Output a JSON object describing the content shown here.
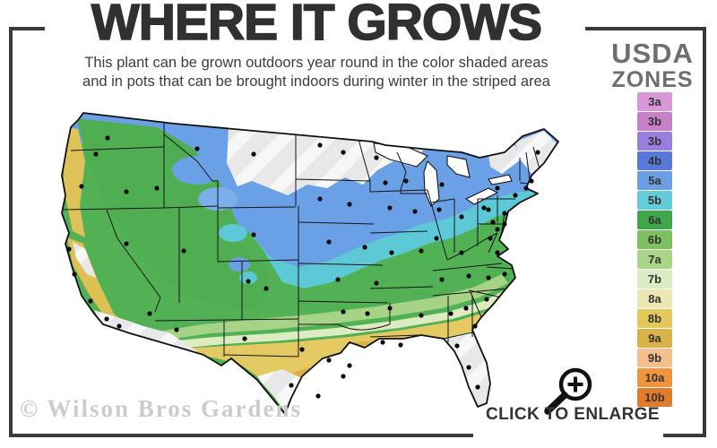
{
  "title": "WHERE IT GROWS",
  "subtitle": {
    "line1": "This plant can be grown outdoors year round in the color shaded areas",
    "line2": "and in pots that can be brought indoors during winter in the striped area"
  },
  "legend": {
    "heading_line1": "USDA",
    "heading_line2": "ZONES",
    "zones": [
      {
        "label": "3a",
        "color": "#d897d6"
      },
      {
        "label": "3b",
        "color": "#c77fc7"
      },
      {
        "label": "3b",
        "color": "#9b7de0"
      },
      {
        "label": "4b",
        "color": "#5a78d8"
      },
      {
        "label": "5a",
        "color": "#6b9fe4"
      },
      {
        "label": "5b",
        "color": "#63ccd8"
      },
      {
        "label": "6a",
        "color": "#3fa64c"
      },
      {
        "label": "6b",
        "color": "#7cc05f"
      },
      {
        "label": "7a",
        "color": "#a8d586"
      },
      {
        "label": "7b",
        "color": "#d9ecc3"
      },
      {
        "label": "8a",
        "color": "#ede6b4"
      },
      {
        "label": "8b",
        "color": "#e3c85c"
      },
      {
        "label": "9a",
        "color": "#d9b348"
      },
      {
        "label": "9b",
        "color": "#f3bf8d"
      },
      {
        "label": "10a",
        "color": "#f0943e"
      },
      {
        "label": "10b",
        "color": "#e27c2d"
      }
    ]
  },
  "map": {
    "colors": {
      "striped_area": "#e8e8ea",
      "stripe_highlight": "#f7f7f8",
      "zone_blue": "#6aa0e6",
      "zone_cyan": "#5ec9d6",
      "zone_green": "#52b155",
      "zone_light_green": "#a6d385",
      "zone_pale": "#dcecc0",
      "zone_gold": "#e5ca64",
      "zone_dark_gold": "#d6b148",
      "border_lines": "#141414"
    }
  },
  "watermark": "© Wilson Bros Gardens",
  "enlarge_label": "CLICK TO ENLARGE",
  "icons": {
    "enlarge": "magnifier-plus-icon"
  },
  "frame_color": "#3a3a3a"
}
